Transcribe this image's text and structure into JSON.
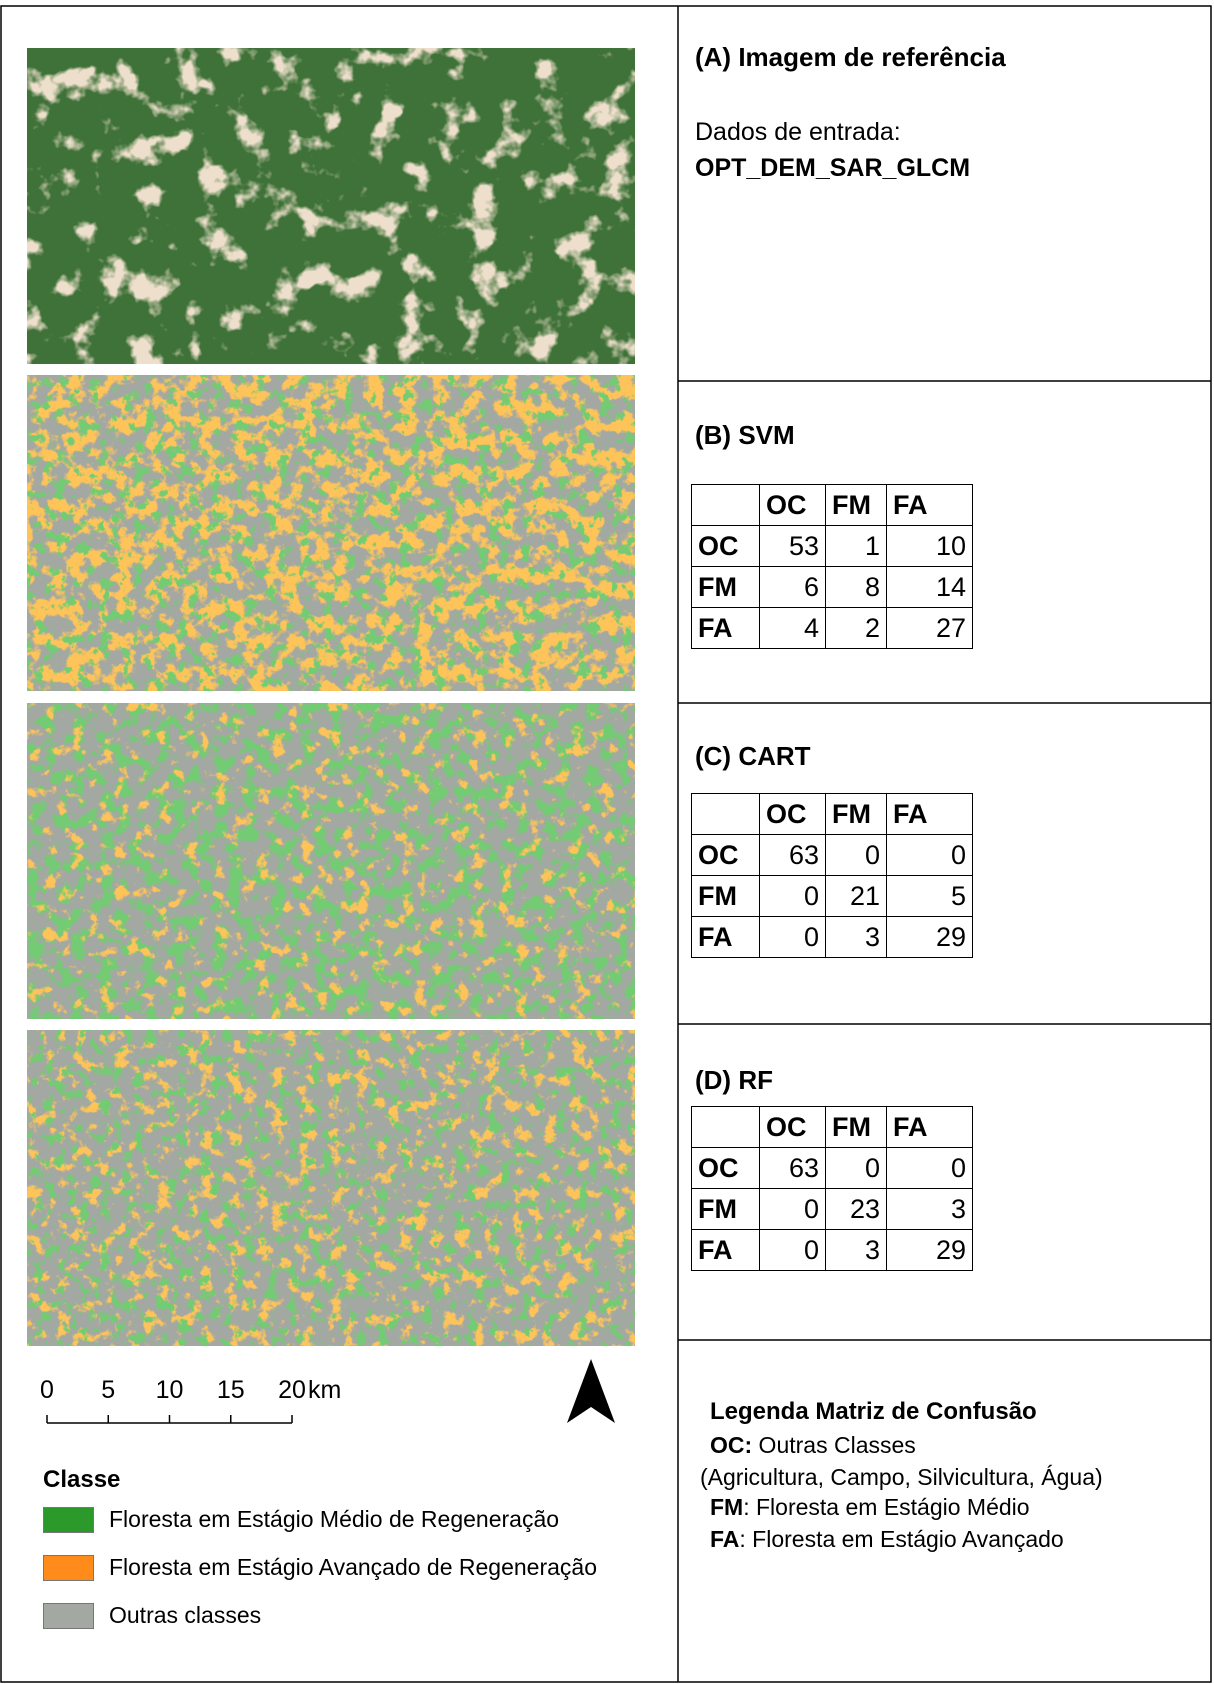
{
  "reference": {
    "title": "(A)  Imagem de referência",
    "input_label": "Dados de entrada:",
    "input_value": "OPT_DEM_SAR_GLCM"
  },
  "matrices": [
    {
      "title": "(B) SVM",
      "columns": [
        "OC",
        "FM",
        "FA"
      ],
      "rows": [
        {
          "label": "OC",
          "values": [
            53,
            1,
            10
          ]
        },
        {
          "label": "FM",
          "values": [
            6,
            8,
            14
          ]
        },
        {
          "label": "FA",
          "values": [
            4,
            2,
            27
          ]
        }
      ]
    },
    {
      "title": "(C) CART",
      "columns": [
        "OC",
        "FM",
        "FA"
      ],
      "rows": [
        {
          "label": "OC",
          "values": [
            63,
            0,
            0
          ]
        },
        {
          "label": "FM",
          "values": [
            0,
            21,
            5
          ]
        },
        {
          "label": "FA",
          "values": [
            0,
            3,
            29
          ]
        }
      ]
    },
    {
      "title": "(D) RF",
      "columns": [
        "OC",
        "FM",
        "FA"
      ],
      "rows": [
        {
          "label": "OC",
          "values": [
            63,
            0,
            0
          ]
        },
        {
          "label": "FM",
          "values": [
            0,
            23,
            3
          ]
        },
        {
          "label": "FA",
          "values": [
            0,
            3,
            29
          ]
        }
      ]
    }
  ],
  "scale_bar": {
    "ticks": [
      0,
      5,
      10,
      15,
      20
    ],
    "unit": "km"
  },
  "map_legend": {
    "title": "Classe",
    "items": [
      {
        "label": "Floresta em Estágio Médio de Regeneração",
        "color": "#2b9a2b"
      },
      {
        "label": "Floresta em Estágio Avançado de Regeneração",
        "color": "#ff8c1a"
      },
      {
        "label": "Outras classes",
        "color": "#a3a8a3"
      }
    ]
  },
  "matrix_legend": {
    "title": "Legenda Matriz de Confusão",
    "entries": [
      {
        "code": "OC:",
        "text": " Outras Classes",
        "note": "(Agricultura, Campo, Silvicultura, Água)"
      },
      {
        "code": "FM",
        "text": ": Floresta em Estágio Médio"
      },
      {
        "code": "FA",
        "text": ": Floresta em Estágio Avançado"
      }
    ]
  }
}
